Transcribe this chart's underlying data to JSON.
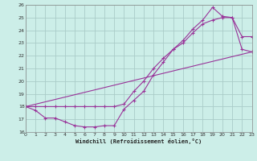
{
  "xlabel": "Windchill (Refroidissement éolien,°C)",
  "bg_color": "#cceee8",
  "grid_color": "#aaccc8",
  "line_color": "#993399",
  "xlim": [
    0,
    23
  ],
  "ylim": [
    16,
    26
  ],
  "xticks": [
    0,
    1,
    2,
    3,
    4,
    5,
    6,
    7,
    8,
    9,
    10,
    11,
    12,
    13,
    14,
    15,
    16,
    17,
    18,
    19,
    20,
    21,
    22,
    23
  ],
  "yticks": [
    16,
    17,
    18,
    19,
    20,
    21,
    22,
    23,
    24,
    25,
    26
  ],
  "curve1_x": [
    0,
    1,
    2,
    3,
    4,
    5,
    6,
    7,
    8,
    9,
    10,
    11,
    12,
    13,
    14,
    15,
    16,
    17,
    18,
    19,
    20,
    21,
    22,
    23
  ],
  "curve1_y": [
    18.0,
    17.7,
    17.1,
    17.1,
    16.8,
    16.5,
    16.4,
    16.4,
    16.5,
    16.5,
    17.8,
    18.5,
    19.2,
    20.5,
    21.5,
    22.5,
    23.2,
    24.1,
    24.8,
    25.8,
    25.1,
    25.0,
    23.5,
    23.5
  ],
  "curve2_x": [
    0,
    1,
    2,
    3,
    4,
    5,
    6,
    7,
    8,
    9,
    10,
    11,
    12,
    13,
    14,
    15,
    16,
    17,
    18,
    19,
    20,
    21,
    22,
    23
  ],
  "curve2_y": [
    18.0,
    18.0,
    18.0,
    18.0,
    18.0,
    18.0,
    18.0,
    18.0,
    18.0,
    18.0,
    18.2,
    19.2,
    20.0,
    21.0,
    21.8,
    22.5,
    23.0,
    23.8,
    24.5,
    24.8,
    25.0,
    25.0,
    22.5,
    22.3
  ],
  "curve3_x": [
    0,
    23
  ],
  "curve3_y": [
    18.0,
    22.3
  ]
}
